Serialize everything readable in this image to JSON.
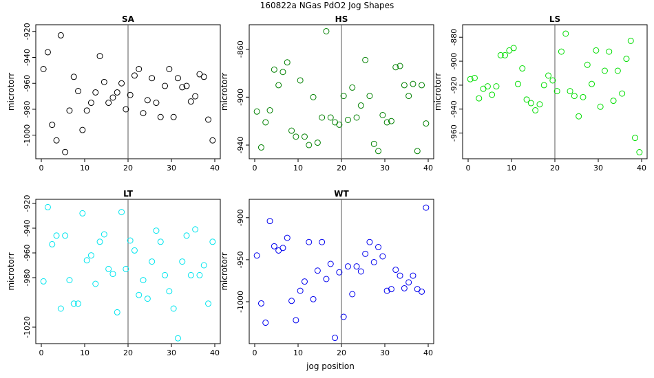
{
  "figure": {
    "title": "160822a   NGas PdO2 Jog Shapes",
    "xlabel": "jog position"
  },
  "chart_data": [
    {
      "type": "scatter",
      "title": "SA",
      "ylabel": "microtorr",
      "color": "#000000",
      "xlim": [
        0,
        40
      ],
      "ylim": [
        -1015,
        -918
      ],
      "xticks": [
        0,
        10,
        20,
        30,
        40
      ],
      "yticks": [
        -920,
        -940,
        -960,
        -980,
        -1000
      ],
      "vline": 20,
      "x": [
        0.5,
        1.5,
        2.5,
        3.5,
        4.5,
        5.5,
        6.5,
        7.5,
        8.5,
        9.5,
        10.5,
        11.5,
        12.5,
        13.5,
        14.5,
        15.5,
        16.5,
        17.5,
        18.5,
        19.5,
        20.5,
        21.5,
        22.5,
        23.5,
        24.5,
        25.5,
        26.5,
        27.5,
        28.5,
        29.5,
        30.5,
        31.5,
        32.5,
        33.5,
        34.5,
        35.5,
        36.5,
        37.5,
        38.5,
        39.5
      ],
      "y": [
        -949,
        -936,
        -992,
        -1004,
        -923,
        -1013,
        -981,
        -955,
        -966,
        -996,
        -981,
        -975,
        -967,
        -939,
        -959,
        -975,
        -971,
        -967,
        -960,
        -980,
        -969,
        -954,
        -949,
        -983,
        -973,
        -956,
        -975,
        -986,
        -962,
        -949,
        -986,
        -956,
        -963,
        -962,
        -974,
        -970,
        -953,
        -955,
        -988,
        -1004
      ]
    },
    {
      "type": "scatter",
      "title": "HS",
      "ylabel": "microtorr",
      "color": "#008000",
      "xlim": [
        0,
        40
      ],
      "ylim": [
        -948,
        -843
      ],
      "xticks": [
        0,
        10,
        20,
        30,
        40
      ],
      "yticks": [
        -860,
        -900,
        -940
      ],
      "vline": 20,
      "x": [
        0.5,
        1.5,
        2.5,
        3.5,
        4.5,
        5.5,
        6.5,
        7.5,
        8.5,
        9.5,
        10.5,
        11.5,
        12.5,
        13.5,
        14.5,
        15.5,
        16.5,
        17.5,
        18.5,
        19.5,
        20.5,
        21.5,
        22.5,
        23.5,
        24.5,
        25.5,
        26.5,
        27.5,
        28.5,
        29.5,
        30.5,
        31.5,
        32.5,
        33.5,
        34.5,
        35.5,
        36.5,
        37.5,
        38.5,
        39.5
      ],
      "y": [
        -912,
        -942,
        -921,
        -911,
        -877,
        -890,
        -879,
        -871,
        -928,
        -933,
        -886,
        -933,
        -940,
        -900,
        -938,
        -917,
        -845,
        -917,
        -921,
        -923,
        -899,
        -919,
        -892,
        -917,
        -907,
        -869,
        -899,
        -939,
        -945,
        -915,
        -921,
        -920,
        -875,
        -874,
        -890,
        -899,
        -889,
        -945,
        -890,
        -922
      ]
    },
    {
      "type": "scatter",
      "title": "LS",
      "ylabel": "microtorr",
      "color": "#00dd00",
      "xlim": [
        0,
        40
      ],
      "ylim": [
        -978,
        -873
      ],
      "xticks": [
        0,
        10,
        20,
        30,
        40
      ],
      "yticks": [
        -880,
        -900,
        -920,
        -940,
        -960
      ],
      "vline": 20,
      "x": [
        0.5,
        1.5,
        2.5,
        3.5,
        4.5,
        5.5,
        6.5,
        7.5,
        8.5,
        9.5,
        10.5,
        11.5,
        12.5,
        13.5,
        14.5,
        15.5,
        16.5,
        17.5,
        18.5,
        19.5,
        20.5,
        21.5,
        22.5,
        23.5,
        24.5,
        25.5,
        26.5,
        27.5,
        28.5,
        29.5,
        30.5,
        31.5,
        32.5,
        33.5,
        34.5,
        35.5,
        36.5,
        37.5,
        38.5,
        39.5
      ],
      "y": [
        -915,
        -914,
        -931,
        -923,
        -921,
        -928,
        -921,
        -895,
        -895,
        -891,
        -889,
        -919,
        -906,
        -932,
        -935,
        -941,
        -936,
        -920,
        -912,
        -916,
        -925,
        -892,
        -877,
        -925,
        -929,
        -946,
        -930,
        -903,
        -919,
        -891,
        -938,
        -908,
        -892,
        -933,
        -908,
        -927,
        -898,
        -883,
        -964,
        -976
      ]
    },
    {
      "type": "scatter",
      "title": "LT",
      "ylabel": "microtorr",
      "color": "#00e5ee",
      "xlim": [
        0,
        40
      ],
      "ylim": [
        -1030,
        -920
      ],
      "xticks": [
        0,
        10,
        20,
        30,
        40
      ],
      "yticks": [
        -920,
        -940,
        -960,
        -980,
        -1020
      ],
      "vline": 20,
      "x": [
        0.5,
        1.5,
        2.5,
        3.5,
        4.5,
        5.5,
        6.5,
        7.5,
        8.5,
        9.5,
        10.5,
        11.5,
        12.5,
        13.5,
        14.5,
        15.5,
        16.5,
        17.5,
        18.5,
        19.5,
        20.5,
        21.5,
        22.5,
        23.5,
        24.5,
        25.5,
        26.5,
        27.5,
        28.5,
        29.5,
        30.5,
        31.5,
        32.5,
        33.5,
        34.5,
        35.5,
        36.5,
        37.5,
        38.5,
        39.5
      ],
      "y": [
        -983,
        -923,
        -953,
        -946,
        -1005,
        -946,
        -982,
        -1001,
        -1001,
        -928,
        -966,
        -962,
        -985,
        -951,
        -945,
        -973,
        -977,
        -1008,
        -927,
        -973,
        -950,
        -958,
        -994,
        -982,
        -997,
        -967,
        -942,
        -951,
        -978,
        -991,
        -1005,
        -1029,
        -967,
        -946,
        -978,
        -941,
        -978,
        -970,
        -1001,
        -951
      ]
    },
    {
      "type": "scatter",
      "title": "WT",
      "ylabel": "microtorr",
      "color": "#0000ee",
      "xlim": [
        0,
        40
      ],
      "ylim": [
        -1045,
        -883
      ],
      "xticks": [
        0,
        10,
        20,
        30,
        40
      ],
      "yticks": [
        -900,
        -950,
        -1000
      ],
      "vline": 20,
      "x": [
        0.5,
        1.5,
        2.5,
        3.5,
        4.5,
        5.5,
        6.5,
        7.5,
        8.5,
        9.5,
        10.5,
        11.5,
        12.5,
        13.5,
        14.5,
        15.5,
        16.5,
        17.5,
        18.5,
        19.5,
        20.5,
        21.5,
        22.5,
        23.5,
        24.5,
        25.5,
        26.5,
        27.5,
        28.5,
        29.5,
        30.5,
        31.5,
        32.5,
        33.5,
        34.5,
        35.5,
        36.5,
        37.5,
        38.5,
        39.5
      ],
      "y": [
        -945,
        -1002,
        -1025,
        -904,
        -934,
        -939,
        -936,
        -924,
        -999,
        -1022,
        -987,
        -976,
        -929,
        -997,
        -963,
        -929,
        -973,
        -955,
        -1043,
        -965,
        -1018,
        -958,
        -991,
        -958,
        -964,
        -943,
        -929,
        -953,
        -935,
        -946,
        -987,
        -985,
        -962,
        -969,
        -984,
        -977,
        -969,
        -985,
        -988,
        -888
      ]
    }
  ]
}
